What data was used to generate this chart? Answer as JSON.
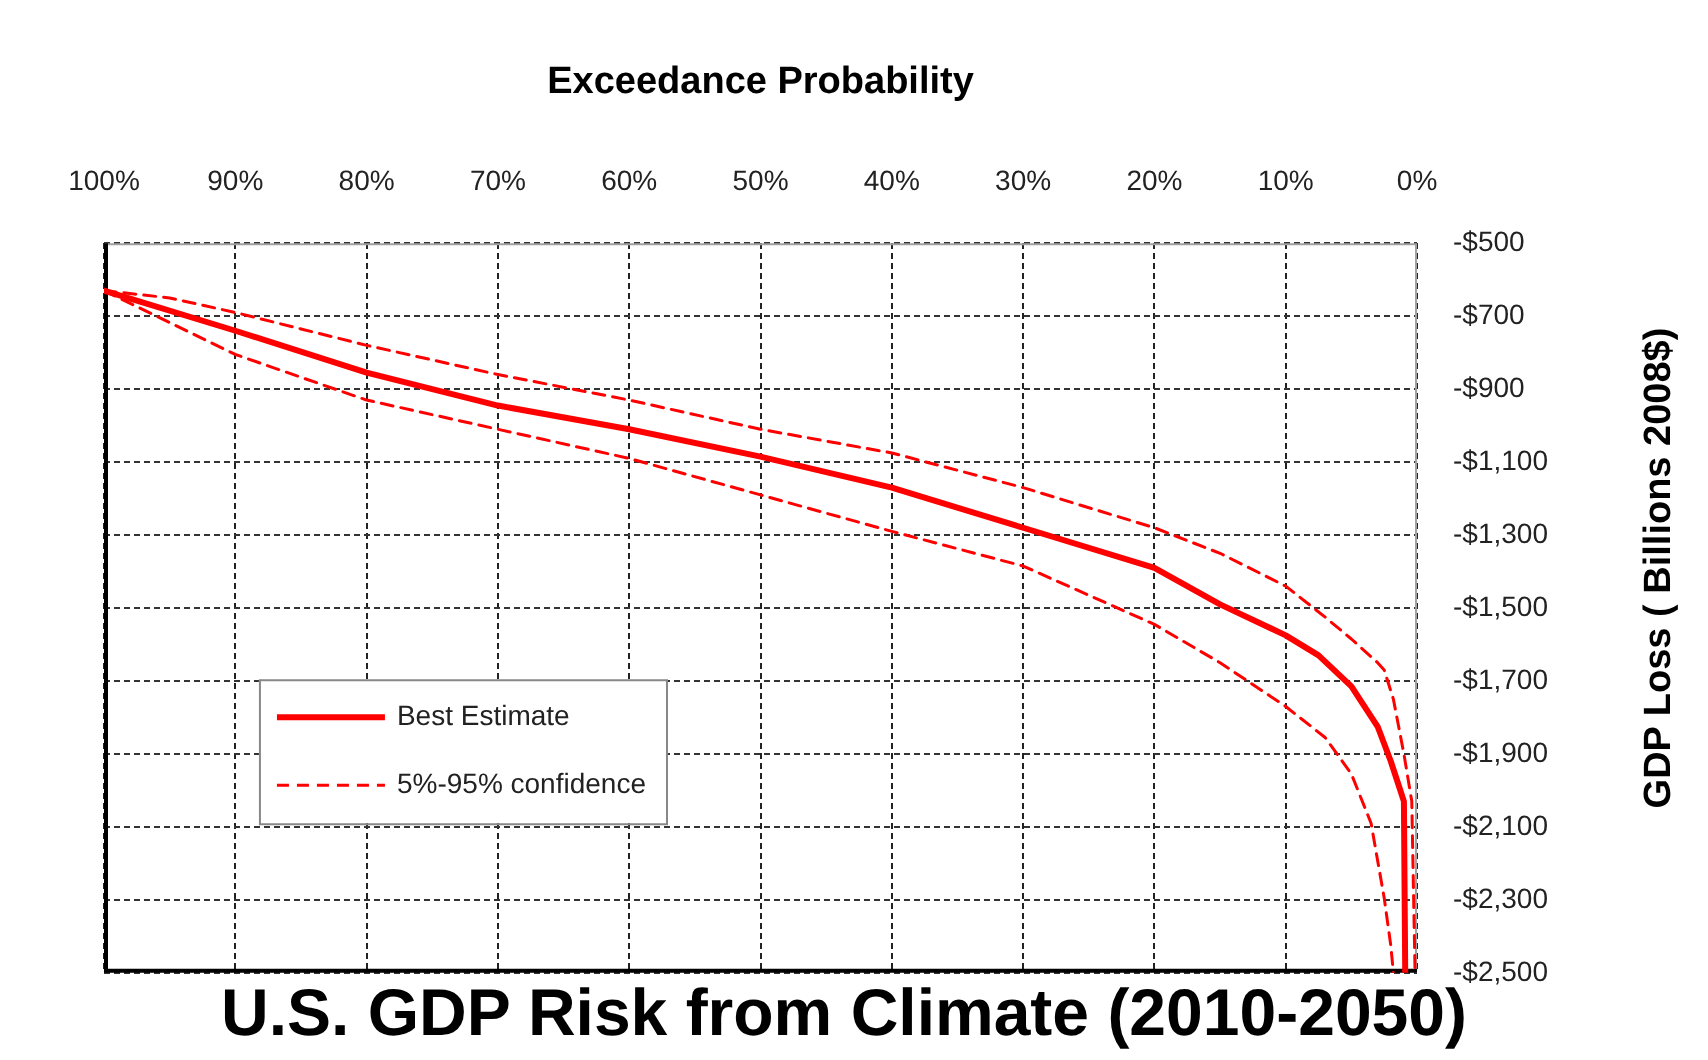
{
  "chart_data": {
    "type": "line",
    "title": "U.S. GDP Risk from Climate (2010-2050)",
    "xlabel": "Exceedance Probability",
    "ylabel": "GDP Loss ( Billions 2008$)",
    "xlim": [
      100,
      0
    ],
    "xticks": [
      {
        "value": 100,
        "label": "100%"
      },
      {
        "value": 90,
        "label": "90%"
      },
      {
        "value": 80,
        "label": "80%"
      },
      {
        "value": 70,
        "label": "70%"
      },
      {
        "value": 60,
        "label": "60%"
      },
      {
        "value": 50,
        "label": "50%"
      },
      {
        "value": 40,
        "label": "40%"
      },
      {
        "value": 30,
        "label": "30%"
      },
      {
        "value": 20,
        "label": "20%"
      },
      {
        "value": 10,
        "label": "10%"
      },
      {
        "value": 0,
        "label": "0%"
      }
    ],
    "ylim": [
      -2500,
      -500
    ],
    "yticks": [
      {
        "value": -500,
        "label": "-$500"
      },
      {
        "value": -700,
        "label": "-$700"
      },
      {
        "value": -900,
        "label": "-$900"
      },
      {
        "value": -1100,
        "label": "-$1,100"
      },
      {
        "value": -1300,
        "label": "-$1,300"
      },
      {
        "value": -1500,
        "label": "-$1,500"
      },
      {
        "value": -1700,
        "label": "-$1,700"
      },
      {
        "value": -1900,
        "label": "-$1,900"
      },
      {
        "value": -2100,
        "label": "-$2,100"
      },
      {
        "value": -2300,
        "label": "-$2,300"
      },
      {
        "value": -2500,
        "label": "-$2,500"
      }
    ],
    "series": [
      {
        "name": "Best Estimate",
        "color": "#ff0000",
        "line_style": "solid",
        "x": [
          100,
          90,
          80,
          70,
          60,
          50,
          40,
          30,
          20,
          15,
          10,
          7.5,
          5,
          3,
          2,
          1.5,
          1,
          0.9
        ],
        "values": [
          -630,
          -740,
          -855,
          -945,
          -1010,
          -1085,
          -1170,
          -1280,
          -1390,
          -1490,
          -1575,
          -1630,
          -1715,
          -1825,
          -1920,
          -1975,
          -2030,
          -2500
        ]
      },
      {
        "name": "5%-95% confidence",
        "color": "#ff0000",
        "line_style": "dashed",
        "x": [
          100,
          95,
          90,
          80,
          70,
          60,
          50,
          40,
          30,
          20,
          15,
          10,
          7,
          5,
          3,
          2.5,
          1.8,
          1,
          0.4,
          0.15
        ],
        "values": [
          -630,
          -650,
          -690,
          -780,
          -860,
          -930,
          -1010,
          -1075,
          -1170,
          -1280,
          -1350,
          -1440,
          -1525,
          -1585,
          -1650,
          -1670,
          -1750,
          -1900,
          -2030,
          -2500
        ]
      },
      {
        "color": "#ff0000",
        "line_style": "dashed",
        "x": [
          100,
          90,
          80,
          70,
          60,
          50,
          40,
          30,
          20,
          15,
          10,
          7,
          5,
          3.5,
          2.5,
          2,
          1.8
        ],
        "values": [
          -630,
          -805,
          -930,
          -1010,
          -1090,
          -1190,
          -1290,
          -1385,
          -1545,
          -1650,
          -1770,
          -1855,
          -1955,
          -2090,
          -2295,
          -2425,
          -2500
        ]
      }
    ],
    "grid": true,
    "legend": "bottom left"
  }
}
